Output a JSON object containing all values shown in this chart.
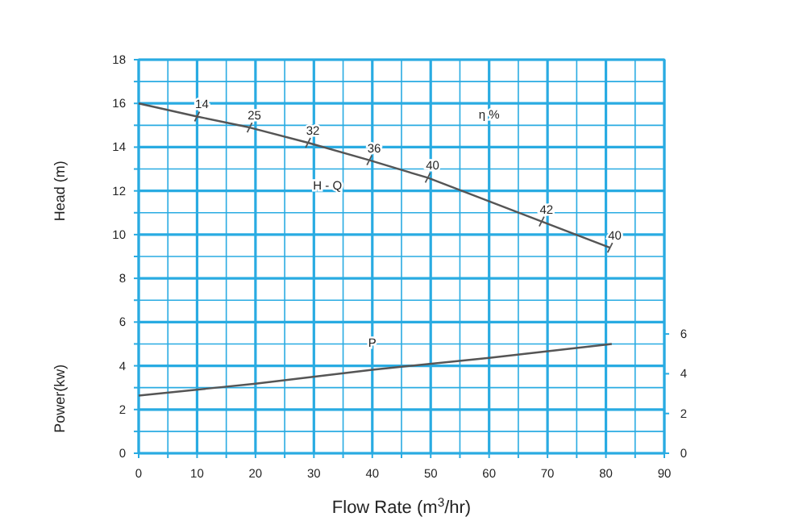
{
  "chart_data": {
    "type": "line",
    "xlabel": "Flow Rate (m$^{3}$/hr)",
    "ylabel": "Head (m)",
    "xlim": [
      0,
      90
    ],
    "ylim": [
      0,
      18
    ],
    "y2lim": [
      0,
      19.8
    ],
    "xticks": [
      0,
      {
        "value": 5,
        "label": null
      },
      10,
      {
        "value": 15,
        "label": null
      },
      20,
      {
        "value": 25,
        "label": null
      },
      30,
      {
        "value": 35,
        "label": null
      },
      40,
      {
        "value": 45,
        "label": null
      },
      50,
      {
        "value": 55,
        "label": null
      },
      60,
      {
        "value": 65,
        "label": null
      },
      70,
      {
        "value": 75,
        "label": null
      },
      80,
      {
        "value": 85,
        "label": null
      },
      90
    ],
    "yticks": [
      0,
      {
        "value": 1,
        "label": null
      },
      2,
      {
        "value": 3,
        "label": null
      },
      4,
      {
        "value": 5,
        "label": null
      },
      6,
      {
        "value": 7,
        "label": null
      },
      8,
      {
        "value": 9,
        "label": null
      },
      10,
      {
        "value": 11,
        "label": null
      },
      12,
      {
        "value": 13,
        "label": null
      },
      14,
      {
        "value": 15,
        "label": null
      },
      16,
      {
        "value": 17,
        "label": null
      },
      18
    ],
    "y2ticks": [
      0,
      2,
      4,
      6
    ],
    "grid": true,
    "series": [
      {
        "name": "H - Q",
        "color": "#555555",
        "x": [
          0,
          10,
          19,
          29,
          39.5,
          49.5,
          69,
          80.7
        ],
        "values": [
          16,
          15.4,
          14.9,
          14.2,
          13.4,
          12.6,
          10.6,
          9.4
        ]
      },
      {
        "type": "scatter",
        "marker": "cross",
        "color": "#555555",
        "x": [
          10,
          19,
          29,
          39.5,
          49.5,
          69,
          80.7
        ],
        "values": [
          15.4,
          14.9,
          14.2,
          13.4,
          12.6,
          10.6,
          9.4
        ]
      },
      {
        "name": "P",
        "color": "#555555",
        "axis": "y2",
        "x": [
          0,
          20,
          40,
          60,
          81
        ],
        "values": [
          2.9,
          3.5,
          4.2,
          4.8,
          5.5
        ]
      }
    ],
    "annotations": [
      "η %",
      "Power(kw)",
      {
        "text": "14",
        "x": 10,
        "y": 15.4
      },
      {
        "text": "25",
        "x": 19,
        "y": 14.9
      },
      {
        "text": "32",
        "x": 29,
        "y": 14.2
      },
      {
        "text": "36",
        "x": 39.5,
        "y": 13.4
      },
      {
        "text": "40",
        "x": 49.5,
        "y": 12.6
      },
      {
        "text": "42",
        "x": 69,
        "y": 10.6
      },
      {
        "text": "40",
        "x": 80.7,
        "y": 9.4
      }
    ]
  }
}
